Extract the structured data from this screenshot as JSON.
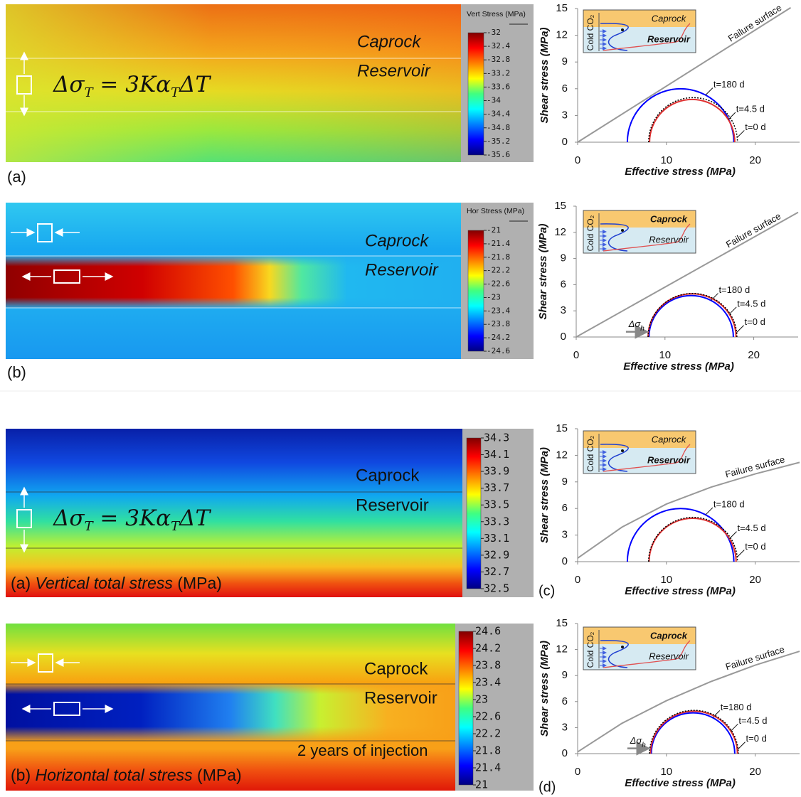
{
  "chart_data": [
    {
      "type": "contour",
      "colorbar_title": "Vert Stress (MPa)",
      "clim": [
        -35.6,
        -32
      ],
      "cticks": [
        -32,
        -32.4,
        -32.8,
        -33.2,
        -33.6,
        -34,
        -34.4,
        -34.8,
        -35.2,
        -35.6
      ],
      "colormap": "jet",
      "labels": [
        "Caprock",
        "Reservoir"
      ],
      "equation": [
        "Δσ",
        "T",
        " = 3Kα",
        "T",
        "ΔT"
      ],
      "panel_label": "(a)"
    },
    {
      "type": "mohr",
      "xlabel": "Effective stress (MPa)",
      "ylabel": "Shear stress (MPa)",
      "xlim": [
        0,
        25
      ],
      "ylim": [
        0,
        15
      ],
      "xticks": [
        0,
        10,
        20
      ],
      "yticks": [
        0,
        3,
        6,
        9,
        12,
        15
      ],
      "failure": {
        "name": "Failure surface",
        "color": "#999999",
        "x": [
          0,
          24
        ],
        "y": [
          0,
          15.1
        ]
      },
      "series": [
        {
          "name": "t=180 d",
          "color": "#0000ff",
          "center": 11.6,
          "radius": 6.0
        },
        {
          "name": "t=4.5 d",
          "color": "#e03030",
          "center": 12.9,
          "radius": 4.8
        },
        {
          "name": "t=0 d",
          "color": "#000000",
          "center": 13,
          "radius": 5.0,
          "style": "dotted"
        }
      ],
      "inset": {
        "top": "Caprock",
        "bottom": "Reservoir",
        "side": "Cold CO₂",
        "bold": "bottom"
      }
    },
    {
      "type": "contour",
      "colorbar_title": "Hor Stress (MPa)",
      "clim": [
        -24.6,
        -21
      ],
      "cticks": [
        -21,
        -21.4,
        -21.8,
        -22.2,
        -22.6,
        -23,
        -23.4,
        -23.8,
        -24.2,
        -24.6
      ],
      "colormap": "jet",
      "labels": [
        "Caprock",
        "Reservoir"
      ],
      "panel_label": "(b)"
    },
    {
      "type": "mohr",
      "xlabel": "Effective stress (MPa)",
      "ylabel": "Shear stress (MPa)",
      "xlim": [
        0,
        25
      ],
      "ylim": [
        0,
        15
      ],
      "xticks": [
        0,
        10,
        20
      ],
      "yticks": [
        0,
        3,
        6,
        9,
        12,
        15
      ],
      "failure": {
        "name": "Failure surface",
        "color": "#999999",
        "x": [
          0,
          25
        ],
        "y": [
          0,
          14.3
        ]
      },
      "series": [
        {
          "name": "t=180 d",
          "color": "#0000ff",
          "center": 12.95,
          "radius": 4.75
        },
        {
          "name": "t=4.5 d",
          "color": "#e03030",
          "center": 13.05,
          "radius": 4.95
        },
        {
          "name": "t=0 d",
          "color": "#000000",
          "center": 13.1,
          "radius": 5.0,
          "style": "dotted"
        }
      ],
      "annotation": [
        "Δσ",
        "h"
      ],
      "inset": {
        "top": "Caprock",
        "bottom": "Reservoir",
        "side": "Cold CO₂",
        "bold": "top"
      }
    },
    {
      "type": "contour",
      "clim": [
        32.5,
        34.3
      ],
      "cticks": [
        34.3,
        34.1,
        33.9,
        33.7,
        33.5,
        33.3,
        33.1,
        32.9,
        32.7,
        32.5
      ],
      "colormap": "jet",
      "labels": [
        "Caprock",
        "Reservoir"
      ],
      "equation": [
        "Δσ",
        "T",
        " = 3Kα",
        "T",
        "ΔT"
      ],
      "caption": [
        "(a) ",
        "Vertical total stress",
        " (MPa)"
      ]
    },
    {
      "type": "mohr",
      "xlabel": "Effective stress (MPa)",
      "ylabel": "Shear stress (MPa)",
      "xlim": [
        0,
        25
      ],
      "ylim": [
        0,
        15
      ],
      "xticks": [
        0,
        10,
        20
      ],
      "yticks": [
        0,
        3,
        6,
        9,
        12,
        15
      ],
      "failure": {
        "name": "Failure surface",
        "color": "#999999",
        "x": [
          0,
          5,
          10,
          15,
          20,
          25
        ],
        "y": [
          0.4,
          3.9,
          6.5,
          8.4,
          9.9,
          11.2
        ]
      },
      "series": [
        {
          "name": "t=180 d",
          "color": "#0000ff",
          "center": 11.6,
          "radius": 6.0
        },
        {
          "name": "t=4.5 d",
          "color": "#e03030",
          "center": 12.95,
          "radius": 4.9
        },
        {
          "name": "t=0 d",
          "color": "#000000",
          "center": 13,
          "radius": 5.0,
          "style": "dotted"
        }
      ],
      "panel_label": "(c)",
      "inset": {
        "top": "Caprock",
        "bottom": "Reservoir",
        "side": "Cold CO₂",
        "bold": "bottom"
      }
    },
    {
      "type": "contour",
      "clim": [
        21,
        24.6
      ],
      "cticks": [
        24.6,
        24.2,
        23.8,
        23.4,
        23,
        22.6,
        22.2,
        21.8,
        21.4,
        21
      ],
      "colormap": "jet",
      "labels": [
        "Caprock",
        "Reservoir"
      ],
      "caption": [
        "(b) ",
        "Horizontal total stress",
        " (MPa)"
      ],
      "note": "2 years of injection"
    },
    {
      "type": "mohr",
      "xlabel": "Effective stress (MPa)",
      "ylabel": "Shear stress (MPa)",
      "xlim": [
        0,
        25
      ],
      "ylim": [
        0,
        15
      ],
      "xticks": [
        0,
        10,
        20
      ],
      "yticks": [
        0,
        3,
        6,
        9,
        12,
        15
      ],
      "failure": {
        "name": "Failure surface",
        "color": "#999999",
        "x": [
          0,
          5,
          10,
          15,
          20,
          25
        ],
        "y": [
          0.2,
          3.5,
          6.1,
          8.3,
          10.2,
          11.8
        ]
      },
      "series": [
        {
          "name": "t=180 d",
          "color": "#0000ff",
          "center": 13,
          "radius": 4.7
        },
        {
          "name": "t=4.5 d",
          "color": "#e03030",
          "center": 13.1,
          "radius": 4.9
        },
        {
          "name": "t=0 d",
          "color": "#000000",
          "center": 13.1,
          "radius": 5.0,
          "style": "dotted"
        }
      ],
      "annotation": [
        "Δσ",
        "h"
      ],
      "panel_label": "(d)",
      "inset": {
        "top": "Caprock",
        "bottom": "Reservoir",
        "side": "Cold CO₂",
        "bold": "top"
      }
    }
  ]
}
